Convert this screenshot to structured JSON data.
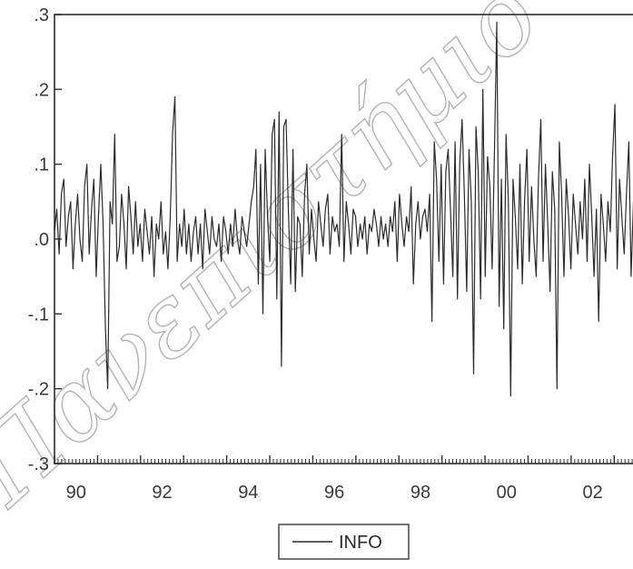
{
  "chart_data": {
    "type": "line",
    "title": "",
    "xlabel": "",
    "ylabel": "",
    "ylim": [
      -0.3,
      0.3
    ],
    "xlim": [
      1990.0,
      2003.5
    ],
    "y_ticks": [
      ".3",
      ".2",
      ".1",
      ".0",
      "-.1",
      "-.2",
      "-.3"
    ],
    "y_tick_values": [
      0.3,
      0.2,
      0.1,
      0.0,
      -0.1,
      -0.2,
      -0.3
    ],
    "x_ticks": [
      "90",
      "92",
      "94",
      "96",
      "98",
      "00",
      "02"
    ],
    "x_tick_values": [
      1990,
      1992,
      1994,
      1996,
      1998,
      2000,
      2002
    ],
    "grid": false,
    "legend_position": "bottom-center",
    "series": [
      {
        "name": "INFO",
        "color": "#2b2b2b",
        "frequency": "weekly",
        "start": 1990.0,
        "values": [
          0.01,
          0.04,
          -0.02,
          0.06,
          0.08,
          -0.01,
          0.03,
          0.05,
          -0.04,
          0.02,
          0.06,
          0.0,
          -0.03,
          0.07,
          0.1,
          -0.02,
          0.04,
          0.08,
          -0.05,
          0.03,
          0.1,
          0.02,
          -0.12,
          -0.2,
          0.05,
          0.02,
          0.14,
          -0.03,
          -0.01,
          0.06,
          0.02,
          -0.04,
          0.07,
          0.03,
          -0.02,
          0.05,
          -0.01,
          0.02,
          -0.03,
          0.04,
          0.01,
          -0.02,
          0.03,
          -0.05,
          0.02,
          0.0,
          0.05,
          -0.02,
          0.01,
          -0.04,
          0.03,
          0.14,
          0.19,
          -0.03,
          0.02,
          -0.01,
          0.04,
          -0.02,
          0.02,
          -0.03,
          0.01,
          0.03,
          -0.02,
          0.02,
          -0.04,
          0.04,
          0.01,
          -0.02,
          0.03,
          0.0,
          -0.01,
          0.02,
          -0.03,
          0.03,
          0.01,
          -0.02,
          0.02,
          -0.01,
          0.04,
          0.0,
          -0.02,
          0.03,
          0.01,
          -0.01,
          0.02,
          0.05,
          0.07,
          0.12,
          -0.06,
          0.1,
          -0.1,
          0.12,
          0.03,
          -0.03,
          0.14,
          0.16,
          -0.08,
          0.17,
          -0.17,
          0.15,
          0.16,
          0.04,
          -0.06,
          0.12,
          -0.07,
          0.03,
          0.02,
          -0.05,
          0.06,
          0.1,
          -0.02,
          0.04,
          0.0,
          -0.03,
          0.05,
          0.02,
          -0.01,
          0.04,
          0.06,
          -0.02,
          0.03,
          0.01,
          0.02,
          -0.01,
          0.14,
          -0.03,
          0.05,
          0.02,
          -0.02,
          0.04,
          0.03,
          -0.01,
          0.02,
          0.0,
          0.03,
          -0.02,
          0.02,
          0.01,
          0.04,
          0.02,
          -0.01,
          0.03,
          0.0,
          0.02,
          -0.01,
          0.03,
          0.01,
          0.05,
          -0.03,
          0.06,
          0.02,
          -0.01,
          0.03,
          0.01,
          0.07,
          -0.06,
          0.02,
          0.05,
          0.0,
          0.03,
          0.04,
          0.01,
          0.06,
          -0.11,
          0.13,
          0.08,
          -0.03,
          0.1,
          -0.06,
          0.09,
          0.12,
          0.04,
          -0.05,
          0.13,
          -0.08,
          0.1,
          0.16,
          0.06,
          -0.07,
          0.12,
          0.05,
          -0.18,
          0.15,
          0.09,
          -0.08,
          0.2,
          -0.05,
          0.11,
          0.07,
          -0.04,
          0.12,
          0.29,
          -0.09,
          0.08,
          -0.12,
          0.14,
          0.05,
          -0.21,
          0.08,
          0.03,
          -0.04,
          0.1,
          -0.06,
          0.05,
          0.12,
          -0.03,
          0.07,
          0.0,
          -0.05,
          0.08,
          0.16,
          -0.03,
          0.1,
          0.02,
          -0.07,
          0.09,
          0.04,
          -0.2,
          0.13,
          0.06,
          -0.05,
          0.08,
          0.03,
          -0.04,
          0.06,
          0.02,
          -0.02,
          0.05,
          0.0,
          0.08,
          -0.03,
          0.1,
          0.03,
          -0.05,
          0.04,
          -0.11,
          0.06,
          0.02,
          -0.03,
          0.05,
          0.01,
          0.11,
          0.18,
          -0.04,
          0.08,
          0.03,
          -0.02,
          0.06,
          0.13,
          -0.05,
          0.05,
          0.0
        ]
      }
    ]
  },
  "legend": {
    "label": "INFO"
  },
  "watermark": "Πανεπιστήμιο"
}
